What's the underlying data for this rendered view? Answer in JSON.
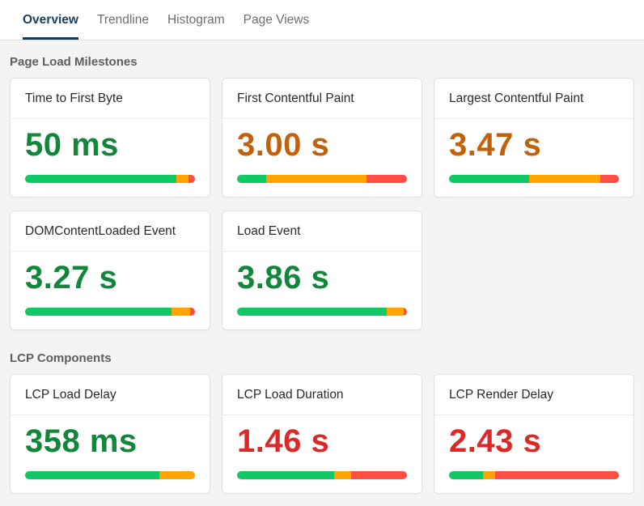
{
  "tabs": [
    {
      "label": "Overview",
      "active": true
    },
    {
      "label": "Trendline",
      "active": false
    },
    {
      "label": "Histogram",
      "active": false
    },
    {
      "label": "Page Views",
      "active": false
    }
  ],
  "palette": {
    "bar": {
      "good": "#12c765",
      "needs_improvement": "#ffa400",
      "poor": "#ff4e42"
    },
    "value_text": {
      "good": "#12863b",
      "needs_improvement": "#c2610a",
      "poor": "#de2826"
    },
    "active_tab": "#173f5f"
  },
  "sections": [
    {
      "heading": "Page Load Milestones",
      "cards": [
        {
          "title": "Time to First Byte",
          "value": "50 ms",
          "status": "good",
          "bar": {
            "good": 89,
            "needs_improvement": 7,
            "poor": 4
          }
        },
        {
          "title": "First Contentful Paint",
          "value": "3.00 s",
          "status": "needs_improvement",
          "bar": {
            "good": 17,
            "needs_improvement": 59,
            "poor": 24
          }
        },
        {
          "title": "Largest Contentful Paint",
          "value": "3.47 s",
          "status": "needs_improvement",
          "bar": {
            "good": 47,
            "needs_improvement": 42,
            "poor": 11
          }
        },
        {
          "title": "DOMContentLoaded Event",
          "value": "3.27 s",
          "status": "good",
          "bar": {
            "good": 86,
            "needs_improvement": 11,
            "poor": 3
          }
        },
        {
          "title": "Load Event",
          "value": "3.86 s",
          "status": "good",
          "bar": {
            "good": 88,
            "needs_improvement": 10,
            "poor": 2
          }
        }
      ]
    },
    {
      "heading": "LCP Components",
      "cards": [
        {
          "title": "LCP Load Delay",
          "value": "358 ms",
          "status": "good",
          "bar": {
            "good": 79,
            "needs_improvement": 21,
            "poor": 0
          }
        },
        {
          "title": "LCP Load Duration",
          "value": "1.46 s",
          "status": "poor",
          "bar": {
            "good": 57,
            "needs_improvement": 10,
            "poor": 33
          }
        },
        {
          "title": "LCP Render Delay",
          "value": "2.43 s",
          "status": "poor",
          "bar": {
            "good": 20,
            "needs_improvement": 7,
            "poor": 73
          }
        }
      ]
    }
  ]
}
